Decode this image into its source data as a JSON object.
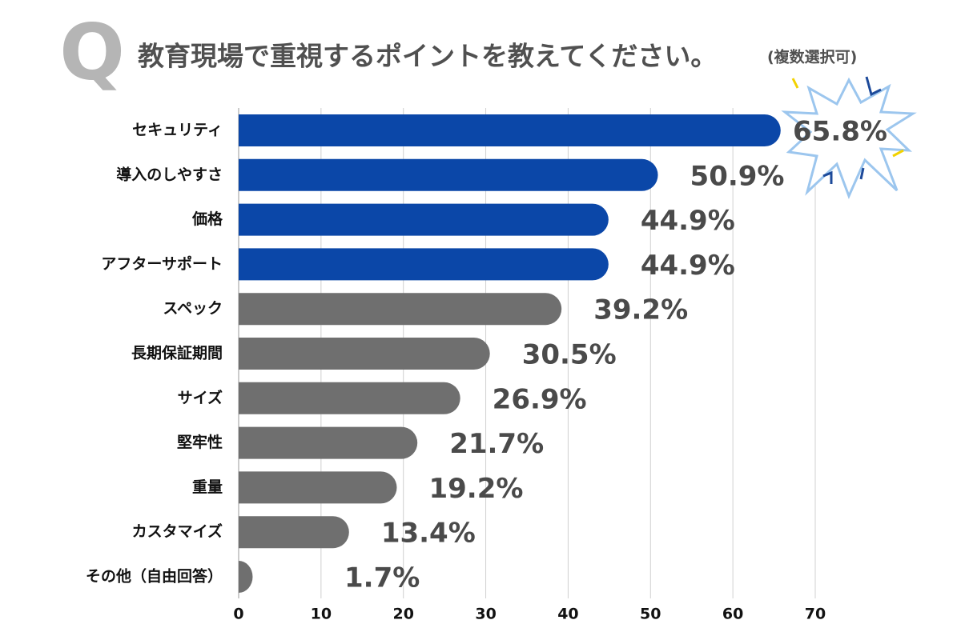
{
  "chart_data": {
    "type": "bar",
    "orientation": "horizontal",
    "title": "教育現場で重視するポイントを教えてください。",
    "subtitle": "(複数選択可)",
    "badge": "Q",
    "categories": [
      "セキュリティ",
      "導入のしやすさ",
      "価格",
      "アフターサポート",
      "スペック",
      "長期保証期間",
      "サイズ",
      "堅牢性",
      "重量",
      "カスタマイズ",
      "その他（自由回答）"
    ],
    "values": [
      65.8,
      50.9,
      44.9,
      44.9,
      39.2,
      30.5,
      26.9,
      21.7,
      19.2,
      13.4,
      1.7
    ],
    "value_labels": [
      "65.8%",
      "50.9%",
      "44.9%",
      "44.9%",
      "39.2%",
      "30.5%",
      "26.9%",
      "21.7%",
      "19.2%",
      "13.4%",
      "1.7%"
    ],
    "colors": [
      "#0b47a8",
      "#0b47a8",
      "#0b47a8",
      "#0b47a8",
      "#6f6f6f",
      "#6f6f6f",
      "#6f6f6f",
      "#6f6f6f",
      "#6f6f6f",
      "#6f6f6f",
      "#6f6f6f"
    ],
    "xlim": [
      0,
      70
    ],
    "xticks": [
      0,
      10,
      20,
      30,
      40,
      50,
      60,
      70
    ],
    "grid": true
  }
}
